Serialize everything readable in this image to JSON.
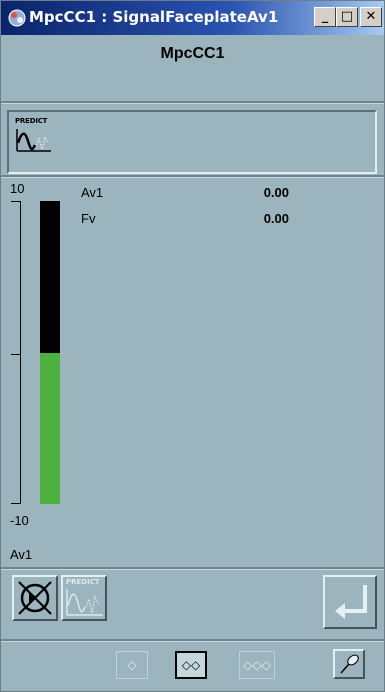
{
  "window": {
    "title": "MpcCC1 : SignalFaceplateAv1",
    "minimize_glyph": "_",
    "restore_glyph": "□",
    "close_glyph": "✕"
  },
  "header": {
    "name": "MpcCC1"
  },
  "predict": {
    "label": "PREDICT",
    "icon": "predict-graph-icon"
  },
  "scale": {
    "max_label": "10",
    "min_label": "-10",
    "max": 10,
    "min": -10,
    "bar_value": 0.0,
    "bar_fill_color": "#4daf3e",
    "bar_empty_color": "#000000"
  },
  "signals": [
    {
      "name": "Av1",
      "value": "0.00"
    },
    {
      "name": "Fv",
      "value": "0.00"
    }
  ],
  "bar_label": "Av1",
  "toolbar": {
    "mode_icon": "no-target-icon",
    "predict_label": "PREDICT",
    "enter_icon": "enter-return-icon"
  },
  "nav": {
    "one": "◇",
    "two": "◇◇",
    "three": "◇◇◇",
    "pin_icon": "pin-icon"
  }
}
